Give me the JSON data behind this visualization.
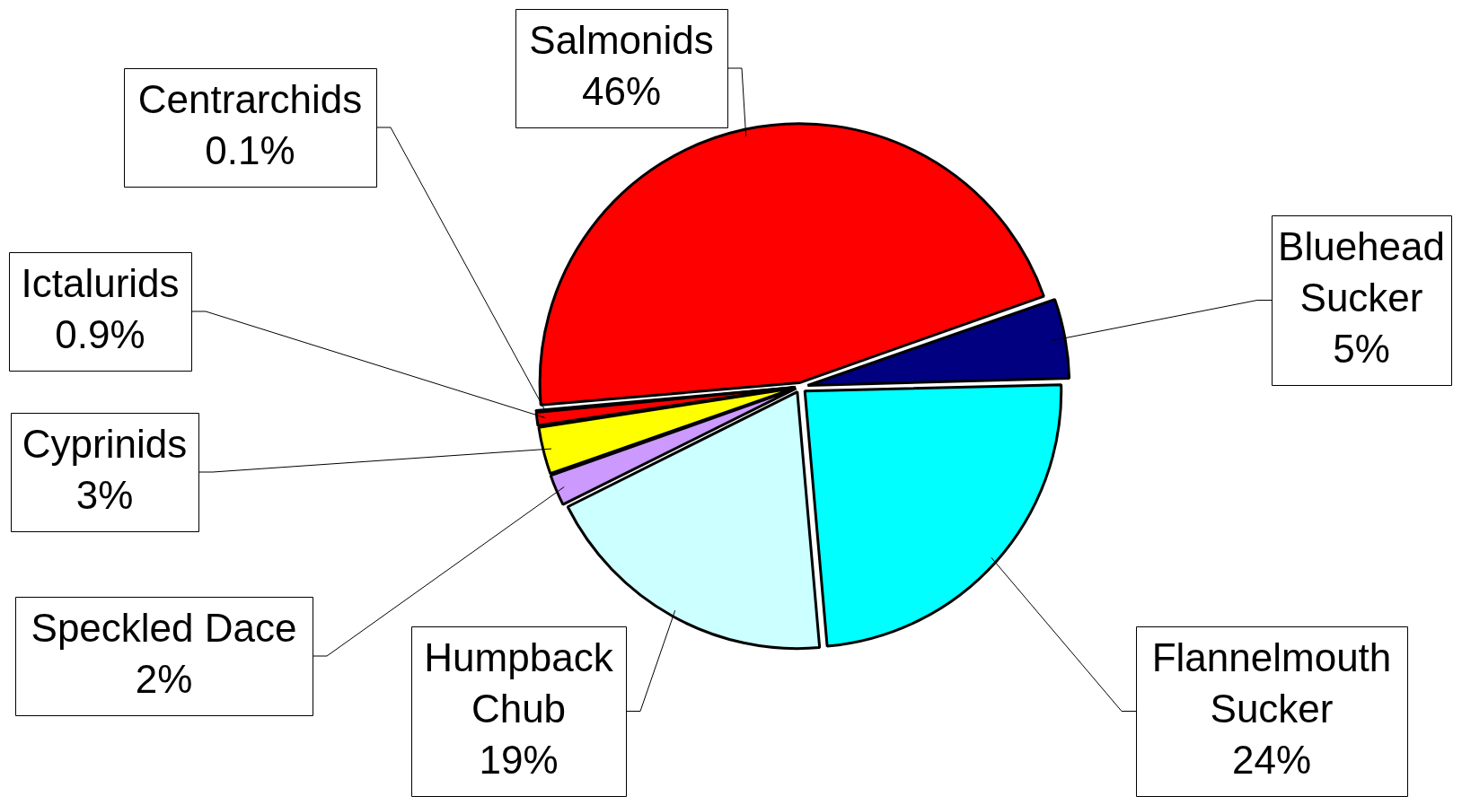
{
  "chart_data": {
    "type": "pie",
    "categories": [
      "Salmonids",
      "Bluehead Sucker",
      "Flannelmouth Sucker",
      "Humpback Chub",
      "Speckled Dace",
      "Cyprinids",
      "Ictalurids",
      "Centrarchids"
    ],
    "values": [
      46,
      5,
      24,
      19,
      2,
      3,
      0.9,
      0.1
    ],
    "colors": [
      "#ff0000",
      "#000080",
      "#00ffff",
      "#ccffff",
      "#cc99ff",
      "#ffff00",
      "#ff0000",
      "#000000"
    ],
    "value_labels": [
      "46%",
      "5%",
      "24%",
      "19%",
      "2%",
      "3%",
      "0.9%",
      "0.1%"
    ],
    "legend": false
  }
}
